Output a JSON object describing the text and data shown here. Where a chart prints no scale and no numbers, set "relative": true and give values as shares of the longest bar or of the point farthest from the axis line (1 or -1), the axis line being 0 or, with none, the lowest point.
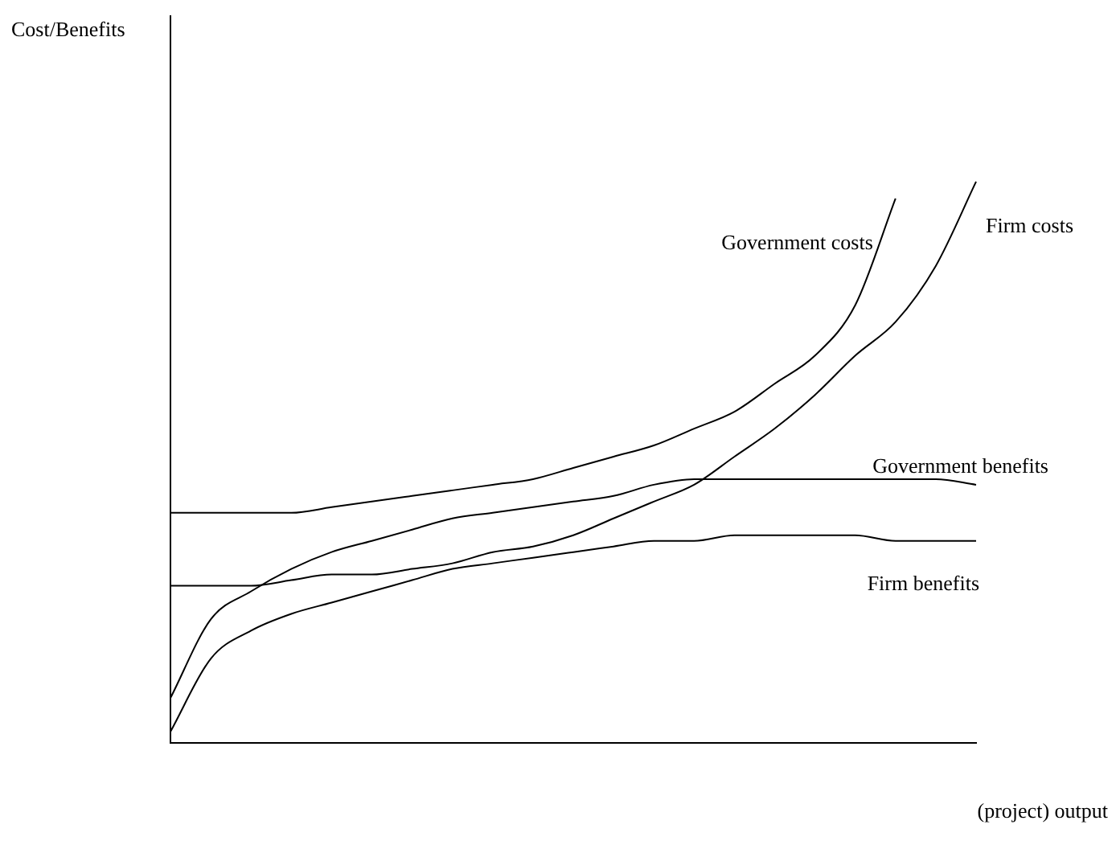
{
  "chart_data": {
    "type": "line",
    "relative": true,
    "annotations": [
      "Cost/Benefits"
    ],
    "xlabel": "(project) output",
    "legend": false,
    "grid": false,
    "marker": "none",
    "line_style": "solid",
    "tick_labels": false,
    "categories": [
      null,
      null,
      null,
      null,
      null,
      null,
      null,
      null,
      null,
      null,
      null,
      null,
      null,
      null,
      null,
      null,
      null,
      null,
      null,
      null,
      null
    ],
    "series": [
      {
        "name": "Government costs",
        "color": "#000000",
        "values": [
          0.41,
          0.41,
          0.41,
          0.41,
          0.42,
          0.43,
          0.44,
          0.45,
          0.46,
          0.47,
          0.49,
          0.51,
          0.53,
          0.56,
          0.59,
          0.64,
          0.69,
          0.78,
          0.97,
          null,
          null
        ]
      },
      {
        "name": "Firm costs",
        "color": "#000000",
        "values": [
          0.28,
          0.28,
          0.28,
          0.29,
          0.3,
          0.3,
          0.31,
          0.32,
          0.34,
          0.35,
          0.37,
          0.4,
          0.43,
          0.46,
          0.51,
          0.56,
          0.62,
          0.69,
          0.75,
          0.85,
          1.0
        ]
      },
      {
        "name": "Government benefits",
        "color": "#000000",
        "values": [
          0.08,
          0.22,
          0.27,
          0.31,
          0.34,
          0.36,
          0.38,
          0.4,
          0.41,
          0.42,
          0.43,
          0.44,
          0.46,
          0.47,
          0.47,
          0.47,
          0.47,
          0.47,
          0.47,
          0.47,
          0.46
        ]
      },
      {
        "name": "Firm benefits",
        "color": "#000000",
        "values": [
          0.02,
          0.15,
          0.2,
          0.23,
          0.25,
          0.27,
          0.29,
          0.31,
          0.32,
          0.33,
          0.34,
          0.35,
          0.36,
          0.36,
          0.37,
          0.37,
          0.37,
          0.37,
          0.36,
          0.36,
          0.36
        ]
      }
    ]
  }
}
